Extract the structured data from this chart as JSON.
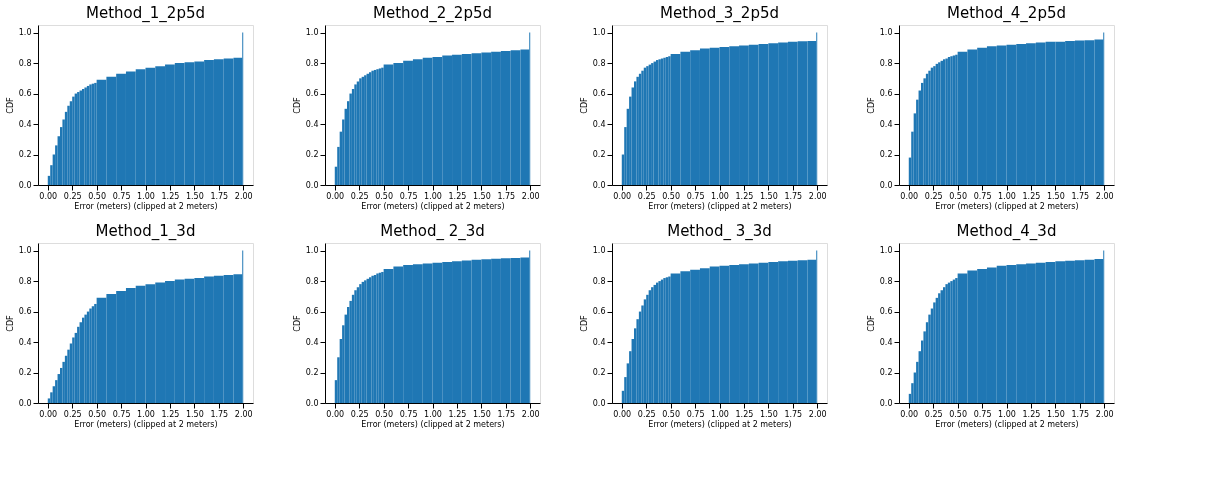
{
  "chart_data": [
    {
      "type": "histogram",
      "title": "Method_1_2p5d",
      "xlabel": "Error (meters) (clipped at 2 meters)",
      "ylabel": "CDF",
      "color": "#1f77b4",
      "grid": false,
      "xlim": [
        -0.1,
        2.1
      ],
      "ylim": [
        0,
        1.05
      ],
      "xticks": [
        {
          "value": 0,
          "label": "0.00"
        },
        {
          "value": 0.25,
          "label": "0.25"
        },
        {
          "value": 0.5,
          "label": "0.50"
        },
        {
          "value": 0.75,
          "label": "0.75"
        },
        {
          "value": 1,
          "label": "1.00"
        },
        {
          "value": 1.25,
          "label": "1.25"
        },
        {
          "value": 1.5,
          "label": "1.50"
        },
        {
          "value": 1.75,
          "label": "1.75"
        },
        {
          "value": 2,
          "label": "2.00"
        }
      ],
      "yticks": [
        {
          "value": 0,
          "label": "0.0"
        },
        {
          "value": 0.2,
          "label": "0.2"
        },
        {
          "value": 0.4,
          "label": "0.4"
        },
        {
          "value": 0.6,
          "label": "0.6"
        },
        {
          "value": 0.8,
          "label": "0.8"
        },
        {
          "value": 1,
          "label": "1.0"
        }
      ],
      "bins": [
        0,
        0.025,
        0.05,
        0.075,
        0.1,
        0.125,
        0.15,
        0.175,
        0.2,
        0.225,
        0.25,
        0.275,
        0.3,
        0.325,
        0.35,
        0.375,
        0.4,
        0.425,
        0.45,
        0.475,
        0.5,
        0.6,
        0.7,
        0.8,
        0.9,
        1.0,
        1.1,
        1.2,
        1.3,
        1.4,
        1.5,
        1.6,
        1.7,
        1.8,
        1.9,
        1.99,
        2.0
      ],
      "values": [
        0.06,
        0.13,
        0.2,
        0.26,
        0.32,
        0.38,
        0.43,
        0.48,
        0.52,
        0.55,
        0.58,
        0.6,
        0.61,
        0.62,
        0.63,
        0.64,
        0.65,
        0.66,
        0.665,
        0.67,
        0.69,
        0.71,
        0.73,
        0.745,
        0.76,
        0.77,
        0.78,
        0.79,
        0.8,
        0.805,
        0.81,
        0.82,
        0.825,
        0.83,
        0.835,
        1.0
      ]
    },
    {
      "type": "histogram",
      "title": "Method_2_2p5d",
      "xlabel": "Error (meters) (clipped at 2 meters)",
      "ylabel": "CDF",
      "color": "#1f77b4",
      "grid": false,
      "xlim": [
        -0.1,
        2.1
      ],
      "ylim": [
        0,
        1.05
      ],
      "xticks": [
        {
          "value": 0,
          "label": "0.00"
        },
        {
          "value": 0.25,
          "label": "0.25"
        },
        {
          "value": 0.5,
          "label": "0.50"
        },
        {
          "value": 0.75,
          "label": "0.75"
        },
        {
          "value": 1,
          "label": "1.00"
        },
        {
          "value": 1.25,
          "label": "1.25"
        },
        {
          "value": 1.5,
          "label": "1.50"
        },
        {
          "value": 1.75,
          "label": "1.75"
        },
        {
          "value": 2,
          "label": "2.00"
        }
      ],
      "yticks": [
        {
          "value": 0,
          "label": "0.0"
        },
        {
          "value": 0.2,
          "label": "0.2"
        },
        {
          "value": 0.4,
          "label": "0.4"
        },
        {
          "value": 0.6,
          "label": "0.6"
        },
        {
          "value": 0.8,
          "label": "0.8"
        },
        {
          "value": 1,
          "label": "1.0"
        }
      ],
      "bins": [
        0,
        0.025,
        0.05,
        0.075,
        0.1,
        0.125,
        0.15,
        0.175,
        0.2,
        0.225,
        0.25,
        0.275,
        0.3,
        0.325,
        0.35,
        0.375,
        0.4,
        0.425,
        0.45,
        0.475,
        0.5,
        0.6,
        0.7,
        0.8,
        0.9,
        1.0,
        1.1,
        1.2,
        1.3,
        1.4,
        1.5,
        1.6,
        1.7,
        1.8,
        1.9,
        1.99,
        2.0
      ],
      "values": [
        0.12,
        0.25,
        0.35,
        0.43,
        0.5,
        0.55,
        0.6,
        0.63,
        0.66,
        0.68,
        0.7,
        0.71,
        0.72,
        0.73,
        0.74,
        0.75,
        0.755,
        0.76,
        0.765,
        0.77,
        0.79,
        0.8,
        0.815,
        0.825,
        0.835,
        0.84,
        0.85,
        0.855,
        0.86,
        0.865,
        0.87,
        0.875,
        0.88,
        0.885,
        0.89,
        1.0
      ]
    },
    {
      "type": "histogram",
      "title": "Method_3_2p5d",
      "xlabel": "Error (meters) (clipped at 2 meters)",
      "ylabel": "CDF",
      "color": "#1f77b4",
      "grid": false,
      "xlim": [
        -0.1,
        2.1
      ],
      "ylim": [
        0,
        1.05
      ],
      "xticks": [
        {
          "value": 0,
          "label": "0.00"
        },
        {
          "value": 0.25,
          "label": "0.25"
        },
        {
          "value": 0.5,
          "label": "0.50"
        },
        {
          "value": 0.75,
          "label": "0.75"
        },
        {
          "value": 1,
          "label": "1.00"
        },
        {
          "value": 1.25,
          "label": "1.25"
        },
        {
          "value": 1.5,
          "label": "1.50"
        },
        {
          "value": 1.75,
          "label": "1.75"
        },
        {
          "value": 2,
          "label": "2.00"
        }
      ],
      "yticks": [
        {
          "value": 0,
          "label": "0.0"
        },
        {
          "value": 0.2,
          "label": "0.2"
        },
        {
          "value": 0.4,
          "label": "0.4"
        },
        {
          "value": 0.6,
          "label": "0.6"
        },
        {
          "value": 0.8,
          "label": "0.8"
        },
        {
          "value": 1,
          "label": "1.0"
        }
      ],
      "bins": [
        0,
        0.025,
        0.05,
        0.075,
        0.1,
        0.125,
        0.15,
        0.175,
        0.2,
        0.225,
        0.25,
        0.275,
        0.3,
        0.325,
        0.35,
        0.375,
        0.4,
        0.425,
        0.45,
        0.475,
        0.5,
        0.6,
        0.7,
        0.8,
        0.9,
        1.0,
        1.1,
        1.2,
        1.3,
        1.4,
        1.5,
        1.6,
        1.7,
        1.8,
        1.9,
        1.99,
        2.0
      ],
      "values": [
        0.2,
        0.38,
        0.5,
        0.58,
        0.64,
        0.68,
        0.71,
        0.73,
        0.75,
        0.77,
        0.78,
        0.79,
        0.8,
        0.81,
        0.82,
        0.825,
        0.83,
        0.835,
        0.84,
        0.845,
        0.86,
        0.875,
        0.885,
        0.895,
        0.9,
        0.905,
        0.91,
        0.915,
        0.92,
        0.925,
        0.93,
        0.935,
        0.94,
        0.943,
        0.945,
        1.0
      ]
    },
    {
      "type": "histogram",
      "title": "Method_4_2p5d",
      "xlabel": "Error (meters) (clipped at 2 meters)",
      "ylabel": "CDF",
      "color": "#1f77b4",
      "grid": false,
      "xlim": [
        -0.1,
        2.1
      ],
      "ylim": [
        0,
        1.05
      ],
      "xticks": [
        {
          "value": 0,
          "label": "0.00"
        },
        {
          "value": 0.25,
          "label": "0.25"
        },
        {
          "value": 0.5,
          "label": "0.50"
        },
        {
          "value": 0.75,
          "label": "0.75"
        },
        {
          "value": 1,
          "label": "1.00"
        },
        {
          "value": 1.25,
          "label": "1.25"
        },
        {
          "value": 1.5,
          "label": "1.50"
        },
        {
          "value": 1.75,
          "label": "1.75"
        },
        {
          "value": 2,
          "label": "2.00"
        }
      ],
      "yticks": [
        {
          "value": 0,
          "label": "0.0"
        },
        {
          "value": 0.2,
          "label": "0.2"
        },
        {
          "value": 0.4,
          "label": "0.4"
        },
        {
          "value": 0.6,
          "label": "0.6"
        },
        {
          "value": 0.8,
          "label": "0.8"
        },
        {
          "value": 1,
          "label": "1.0"
        }
      ],
      "bins": [
        0,
        0.025,
        0.05,
        0.075,
        0.1,
        0.125,
        0.15,
        0.175,
        0.2,
        0.225,
        0.25,
        0.275,
        0.3,
        0.325,
        0.35,
        0.375,
        0.4,
        0.425,
        0.45,
        0.475,
        0.5,
        0.6,
        0.7,
        0.8,
        0.9,
        1.0,
        1.1,
        1.2,
        1.3,
        1.4,
        1.5,
        1.6,
        1.7,
        1.8,
        1.9,
        1.99,
        2.0
      ],
      "values": [
        0.18,
        0.35,
        0.47,
        0.56,
        0.62,
        0.67,
        0.7,
        0.73,
        0.75,
        0.77,
        0.78,
        0.795,
        0.805,
        0.815,
        0.825,
        0.83,
        0.84,
        0.845,
        0.85,
        0.855,
        0.875,
        0.89,
        0.9,
        0.91,
        0.915,
        0.92,
        0.925,
        0.93,
        0.935,
        0.94,
        0.94,
        0.945,
        0.948,
        0.95,
        0.955,
        1.0
      ]
    },
    {
      "type": "histogram",
      "title": "Method_1_3d",
      "xlabel": "Error (meters) (clipped at 2 meters)",
      "ylabel": "CDF",
      "color": "#1f77b4",
      "grid": false,
      "xlim": [
        -0.1,
        2.1
      ],
      "ylim": [
        0,
        1.05
      ],
      "xticks": [
        {
          "value": 0,
          "label": "0.00"
        },
        {
          "value": 0.25,
          "label": "0.25"
        },
        {
          "value": 0.5,
          "label": "0.50"
        },
        {
          "value": 0.75,
          "label": "0.75"
        },
        {
          "value": 1,
          "label": "1.00"
        },
        {
          "value": 1.25,
          "label": "1.25"
        },
        {
          "value": 1.5,
          "label": "1.50"
        },
        {
          "value": 1.75,
          "label": "1.75"
        },
        {
          "value": 2,
          "label": "2.00"
        }
      ],
      "yticks": [
        {
          "value": 0,
          "label": "0.0"
        },
        {
          "value": 0.2,
          "label": "0.2"
        },
        {
          "value": 0.4,
          "label": "0.4"
        },
        {
          "value": 0.6,
          "label": "0.6"
        },
        {
          "value": 0.8,
          "label": "0.8"
        },
        {
          "value": 1,
          "label": "1.0"
        }
      ],
      "bins": [
        0,
        0.025,
        0.05,
        0.075,
        0.1,
        0.125,
        0.15,
        0.175,
        0.2,
        0.225,
        0.25,
        0.275,
        0.3,
        0.325,
        0.35,
        0.375,
        0.4,
        0.425,
        0.45,
        0.475,
        0.5,
        0.6,
        0.7,
        0.8,
        0.9,
        1.0,
        1.1,
        1.2,
        1.3,
        1.4,
        1.5,
        1.6,
        1.7,
        1.8,
        1.9,
        1.99,
        2.0
      ],
      "values": [
        0.03,
        0.07,
        0.11,
        0.15,
        0.19,
        0.23,
        0.27,
        0.31,
        0.35,
        0.39,
        0.43,
        0.46,
        0.5,
        0.53,
        0.56,
        0.58,
        0.6,
        0.62,
        0.635,
        0.65,
        0.69,
        0.715,
        0.735,
        0.755,
        0.77,
        0.78,
        0.79,
        0.8,
        0.81,
        0.815,
        0.82,
        0.83,
        0.835,
        0.84,
        0.845,
        1.0
      ]
    },
    {
      "type": "histogram",
      "title": "Method_ 2_3d",
      "xlabel": "Error (meters) (clipped at 2 meters)",
      "ylabel": "CDF",
      "color": "#1f77b4",
      "grid": false,
      "xlim": [
        -0.1,
        2.1
      ],
      "ylim": [
        0,
        1.05
      ],
      "xticks": [
        {
          "value": 0,
          "label": "0.00"
        },
        {
          "value": 0.25,
          "label": "0.25"
        },
        {
          "value": 0.5,
          "label": "0.50"
        },
        {
          "value": 0.75,
          "label": "0.75"
        },
        {
          "value": 1,
          "label": "1.00"
        },
        {
          "value": 1.25,
          "label": "1.25"
        },
        {
          "value": 1.5,
          "label": "1.50"
        },
        {
          "value": 1.75,
          "label": "1.75"
        },
        {
          "value": 2,
          "label": "2.00"
        }
      ],
      "yticks": [
        {
          "value": 0,
          "label": "0.0"
        },
        {
          "value": 0.2,
          "label": "0.2"
        },
        {
          "value": 0.4,
          "label": "0.4"
        },
        {
          "value": 0.6,
          "label": "0.6"
        },
        {
          "value": 0.8,
          "label": "0.8"
        },
        {
          "value": 1,
          "label": "1.0"
        }
      ],
      "bins": [
        0,
        0.025,
        0.05,
        0.075,
        0.1,
        0.125,
        0.15,
        0.175,
        0.2,
        0.225,
        0.25,
        0.275,
        0.3,
        0.325,
        0.35,
        0.375,
        0.4,
        0.425,
        0.45,
        0.475,
        0.5,
        0.6,
        0.7,
        0.8,
        0.9,
        1.0,
        1.1,
        1.2,
        1.3,
        1.4,
        1.5,
        1.6,
        1.7,
        1.8,
        1.9,
        1.99,
        2.0
      ],
      "values": [
        0.15,
        0.3,
        0.42,
        0.51,
        0.58,
        0.63,
        0.67,
        0.71,
        0.74,
        0.76,
        0.78,
        0.795,
        0.805,
        0.815,
        0.825,
        0.835,
        0.84,
        0.85,
        0.855,
        0.86,
        0.88,
        0.895,
        0.905,
        0.91,
        0.915,
        0.92,
        0.925,
        0.93,
        0.935,
        0.94,
        0.943,
        0.946,
        0.95,
        0.952,
        0.955,
        1.0
      ]
    },
    {
      "type": "histogram",
      "title": "Method_ 3_3d",
      "xlabel": "Error (meters) (clipped at 2 meters)",
      "ylabel": "CDF",
      "color": "#1f77b4",
      "grid": false,
      "xlim": [
        -0.1,
        2.1
      ],
      "ylim": [
        0,
        1.05
      ],
      "xticks": [
        {
          "value": 0,
          "label": "0.00"
        },
        {
          "value": 0.25,
          "label": "0.25"
        },
        {
          "value": 0.5,
          "label": "0.50"
        },
        {
          "value": 0.75,
          "label": "0.75"
        },
        {
          "value": 1,
          "label": "1.00"
        },
        {
          "value": 1.25,
          "label": "1.25"
        },
        {
          "value": 1.5,
          "label": "1.50"
        },
        {
          "value": 1.75,
          "label": "1.75"
        },
        {
          "value": 2,
          "label": "2.00"
        }
      ],
      "yticks": [
        {
          "value": 0,
          "label": "0.0"
        },
        {
          "value": 0.2,
          "label": "0.2"
        },
        {
          "value": 0.4,
          "label": "0.4"
        },
        {
          "value": 0.6,
          "label": "0.6"
        },
        {
          "value": 0.8,
          "label": "0.8"
        },
        {
          "value": 1,
          "label": "1.0"
        }
      ],
      "bins": [
        0,
        0.025,
        0.05,
        0.075,
        0.1,
        0.125,
        0.15,
        0.175,
        0.2,
        0.225,
        0.25,
        0.275,
        0.3,
        0.325,
        0.35,
        0.375,
        0.4,
        0.425,
        0.45,
        0.475,
        0.5,
        0.6,
        0.7,
        0.8,
        0.9,
        1.0,
        1.1,
        1.2,
        1.3,
        1.4,
        1.5,
        1.6,
        1.7,
        1.8,
        1.9,
        1.99,
        2.0
      ],
      "values": [
        0.08,
        0.17,
        0.26,
        0.34,
        0.42,
        0.49,
        0.55,
        0.6,
        0.64,
        0.68,
        0.71,
        0.74,
        0.76,
        0.775,
        0.79,
        0.8,
        0.81,
        0.82,
        0.825,
        0.83,
        0.85,
        0.865,
        0.875,
        0.885,
        0.895,
        0.9,
        0.905,
        0.91,
        0.915,
        0.92,
        0.925,
        0.93,
        0.933,
        0.936,
        0.94,
        1.0
      ]
    },
    {
      "type": "histogram",
      "title": "Method_4_3d",
      "xlabel": "Error (meters) (clipped at 2 meters)",
      "ylabel": "CDF",
      "color": "#1f77b4",
      "grid": false,
      "xlim": [
        -0.1,
        2.1
      ],
      "ylim": [
        0,
        1.05
      ],
      "xticks": [
        {
          "value": 0,
          "label": "0.00"
        },
        {
          "value": 0.25,
          "label": "0.25"
        },
        {
          "value": 0.5,
          "label": "0.50"
        },
        {
          "value": 0.75,
          "label": "0.75"
        },
        {
          "value": 1,
          "label": "1.00"
        },
        {
          "value": 1.25,
          "label": "1.25"
        },
        {
          "value": 1.5,
          "label": "1.50"
        },
        {
          "value": 1.75,
          "label": "1.75"
        },
        {
          "value": 2,
          "label": "2.00"
        }
      ],
      "yticks": [
        {
          "value": 0,
          "label": "0.0"
        },
        {
          "value": 0.2,
          "label": "0.2"
        },
        {
          "value": 0.4,
          "label": "0.4"
        },
        {
          "value": 0.6,
          "label": "0.6"
        },
        {
          "value": 0.8,
          "label": "0.8"
        },
        {
          "value": 1,
          "label": "1.0"
        }
      ],
      "bins": [
        0,
        0.025,
        0.05,
        0.075,
        0.1,
        0.125,
        0.15,
        0.175,
        0.2,
        0.225,
        0.25,
        0.275,
        0.3,
        0.325,
        0.35,
        0.375,
        0.4,
        0.425,
        0.45,
        0.475,
        0.5,
        0.6,
        0.7,
        0.8,
        0.9,
        1.0,
        1.1,
        1.2,
        1.3,
        1.4,
        1.5,
        1.6,
        1.7,
        1.8,
        1.9,
        1.99,
        2.0
      ],
      "values": [
        0.06,
        0.13,
        0.2,
        0.27,
        0.34,
        0.41,
        0.47,
        0.53,
        0.58,
        0.62,
        0.66,
        0.69,
        0.72,
        0.74,
        0.76,
        0.78,
        0.79,
        0.8,
        0.81,
        0.82,
        0.85,
        0.87,
        0.88,
        0.89,
        0.9,
        0.905,
        0.91,
        0.915,
        0.92,
        0.925,
        0.93,
        0.933,
        0.937,
        0.94,
        0.945,
        1.0
      ]
    }
  ]
}
